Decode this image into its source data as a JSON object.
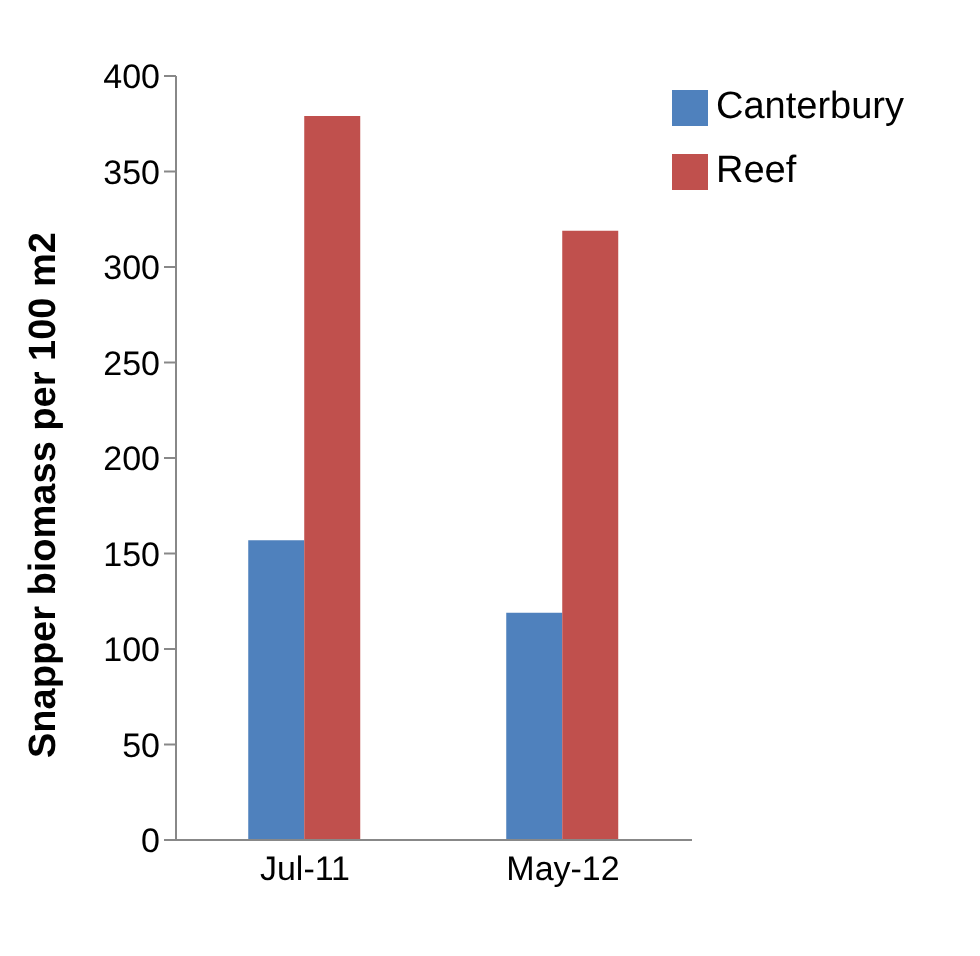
{
  "chart_data": {
    "type": "bar",
    "ylabel": "Snapper biomass per 100 m2",
    "categories": [
      "Jul-11",
      "May-12"
    ],
    "series": [
      {
        "name": "Canterbury",
        "color": "#4f81bd",
        "values": [
          157,
          119
        ]
      },
      {
        "name": "Reef",
        "color": "#c0504d",
        "values": [
          379,
          319
        ]
      }
    ],
    "ylim": [
      0,
      400
    ],
    "yticks": [
      0,
      50,
      100,
      150,
      200,
      250,
      300,
      350,
      400
    ],
    "grid": false,
    "legend": "top right"
  }
}
